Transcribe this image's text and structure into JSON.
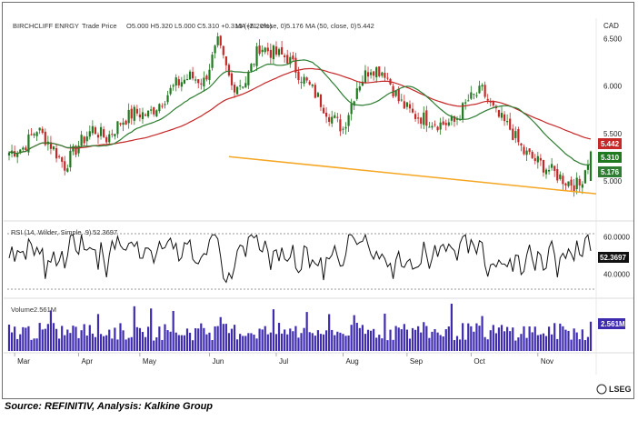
{
  "header": {
    "symbol": "BIRCHCLIFF ENRGY",
    "series_type": "Trade Price",
    "ohlc": "O5.000  H5.320  L5.000  C5.310  +0.310 (+6.20%)",
    "ma21_label": "MA (21, close, 0)",
    "ma21_value": "5.176",
    "ma50_label": "MA (50, close, 0)",
    "ma50_value": "5.442",
    "currency": "CAD"
  },
  "rsi_panel": {
    "label": "RSI (14, Wilder, Simple, 9)",
    "value": "52.3697",
    "tag": "52.3697"
  },
  "volume_panel": {
    "label": "Volume",
    "value": "2.561M",
    "tag": "2.561M"
  },
  "price_tags": {
    "ma50": "5.442",
    "close": "5.310",
    "ma21": "5.176"
  },
  "colors": {
    "up": "#1f7a1f",
    "down": "#c62828",
    "ma21": "#2e7d32",
    "ma50": "#c62828",
    "trendline": "#f5a623",
    "rsi": "#000000",
    "volume": "#3d2bb0"
  },
  "brand": "LSEG",
  "caption": "Source: REFINITIV, Analysis: Kalkine Group",
  "chart_data": [
    {
      "type": "candlestick",
      "title": "BIRCHCLIFF ENRGY, Trade Price",
      "ylim": [
        4.75,
        6.65
      ],
      "yticks": [
        5.0,
        5.5,
        6.0,
        6.5
      ],
      "ytick_labels": [
        "5.000",
        "5.500",
        "6.000",
        "6.500"
      ],
      "months": [
        "Mar",
        "Apr",
        "May",
        "Jun",
        "Jul",
        "Aug",
        "Sep",
        "Oct",
        "Nov"
      ],
      "close_keypoints": [
        [
          0,
          5.3
        ],
        [
          5,
          5.35
        ],
        [
          10,
          5.55
        ],
        [
          15,
          5.38
        ],
        [
          20,
          5.16
        ],
        [
          25,
          5.38
        ],
        [
          30,
          5.55
        ],
        [
          35,
          5.45
        ],
        [
          40,
          5.62
        ],
        [
          45,
          5.72
        ],
        [
          50,
          5.7
        ],
        [
          55,
          5.85
        ],
        [
          60,
          6.02
        ],
        [
          65,
          6.1
        ],
        [
          70,
          6.05
        ],
        [
          75,
          6.45
        ],
        [
          80,
          6.0
        ],
        [
          85,
          6.05
        ],
        [
          90,
          6.42
        ],
        [
          95,
          6.35
        ],
        [
          100,
          6.3
        ],
        [
          105,
          6.1
        ],
        [
          110,
          5.92
        ],
        [
          115,
          5.7
        ],
        [
          120,
          5.55
        ],
        [
          125,
          6.0
        ],
        [
          130,
          6.2
        ],
        [
          135,
          6.15
        ],
        [
          140,
          5.85
        ],
        [
          145,
          5.7
        ],
        [
          150,
          5.65
        ],
        [
          155,
          5.6
        ],
        [
          160,
          5.62
        ],
        [
          165,
          5.85
        ],
        [
          170,
          5.95
        ],
        [
          175,
          5.7
        ],
        [
          180,
          5.55
        ],
        [
          185,
          5.3
        ],
        [
          190,
          5.2
        ],
        [
          195,
          5.1
        ],
        [
          200,
          5.0
        ],
        [
          205,
          4.95
        ],
        [
          209,
          5.31
        ]
      ],
      "last_candle": {
        "open": 5.0,
        "high": 5.32,
        "low": 5.0,
        "close": 5.31
      },
      "ma21_last": 5.176,
      "ma50_last": 5.442,
      "trendline": [
        [
          0,
          5.49
        ],
        [
          209,
          4.87
        ]
      ]
    },
    {
      "type": "line",
      "name": "RSI (14, Wilder, Simple, 9)",
      "ylim": [
        30,
        65
      ],
      "yticks": [
        40,
        60
      ],
      "ytick_labels": [
        "40.0000",
        "60.0000"
      ],
      "reference_lines": [
        30,
        70
      ],
      "last": 52.3697
    },
    {
      "type": "bar",
      "name": "Volume",
      "last": "2.561M"
    }
  ]
}
